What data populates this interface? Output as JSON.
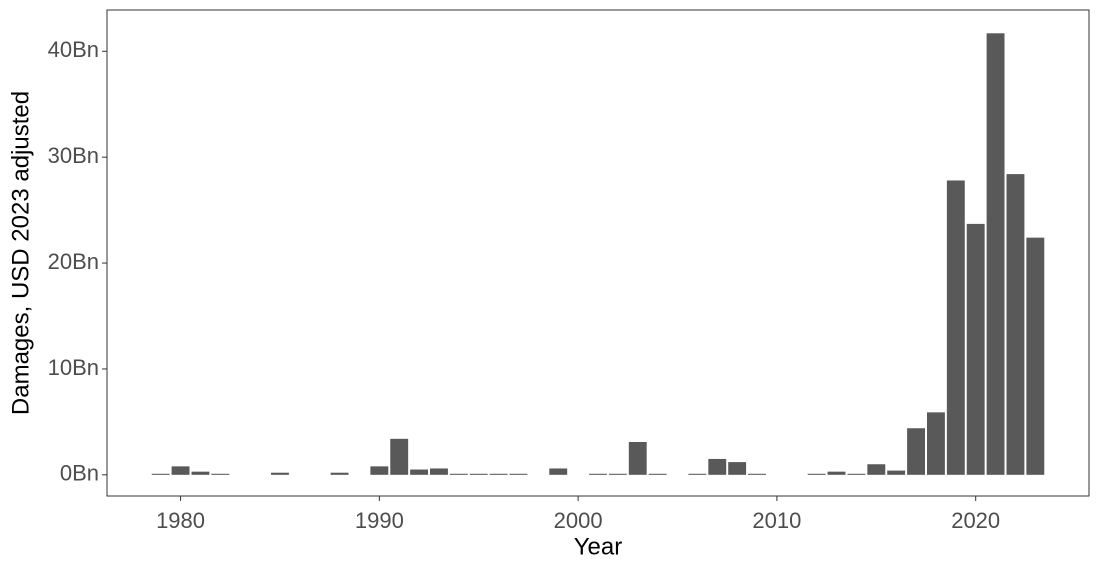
{
  "chart_data": {
    "type": "bar",
    "x_label": "Year",
    "y_label": "Damages, USD 2023 adjusted",
    "x": [
      1979,
      1980,
      1981,
      1982,
      1985,
      1988,
      1990,
      1991,
      1992,
      1993,
      1994,
      1995,
      1996,
      1997,
      1999,
      2001,
      2002,
      2003,
      2004,
      2006,
      2007,
      2008,
      2009,
      2012,
      2013,
      2014,
      2015,
      2016,
      2017,
      2018,
      2019,
      2020,
      2021,
      2022,
      2023
    ],
    "values": [
      0.1,
      0.8,
      0.3,
      0.1,
      0.2,
      0.2,
      0.8,
      3.4,
      0.5,
      0.6,
      0.1,
      0.1,
      0.1,
      0.1,
      0.6,
      0.1,
      0.1,
      3.1,
      0.1,
      0.1,
      1.5,
      1.2,
      0.1,
      0.1,
      0.3,
      0.1,
      1.0,
      0.4,
      4.4,
      5.9,
      27.8,
      23.7,
      41.7,
      28.4,
      22.4
    ],
    "color": "#595959",
    "xlim": [
      1976.3,
      2025.7
    ],
    "xticks": [
      1980,
      1990,
      2000,
      2010,
      2020
    ],
    "ylim": [
      -2,
      43.9
    ],
    "yticks": [
      {
        "value": 0,
        "label": "0Bn"
      },
      {
        "value": 10,
        "label": "10Bn"
      },
      {
        "value": 20,
        "label": "20Bn"
      },
      {
        "value": 30,
        "label": "30Bn"
      },
      {
        "value": 40,
        "label": "40Bn"
      }
    ],
    "grid": false
  }
}
